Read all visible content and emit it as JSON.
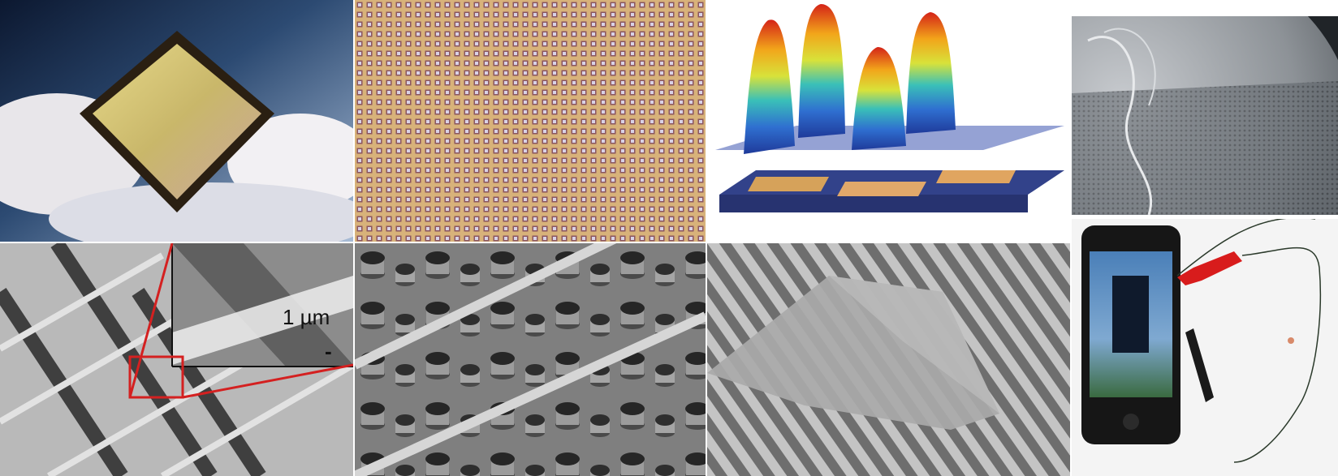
{
  "figure": {
    "panels": [
      {
        "id": "chip",
        "depicts": "fingers-holding-square-chip"
      },
      {
        "id": "grid",
        "depicts": "microscope-pixel-array"
      },
      {
        "id": "peaks",
        "depicts": "3d-surface-peaks-over-device"
      },
      {
        "id": "coin",
        "depicts": "mesh-on-coin"
      },
      {
        "id": "sem1",
        "depicts": "sem-crossbar-with-inset"
      },
      {
        "id": "sem2",
        "depicts": "sem-pillars-and-bridges"
      },
      {
        "id": "sem3",
        "depicts": "sem-membrane-on-grooves"
      },
      {
        "id": "phone",
        "depicts": "phone-with-alligator-clips"
      }
    ],
    "scale_bar_label": "1 µm",
    "inset_marker": "-"
  },
  "colors": {
    "highlight_box": "#d42020",
    "sem_gray": "#9a9a9a",
    "chip_gold": "#c9b76a",
    "clip_red": "#d81c1c",
    "clip_black": "#1a1a1a"
  }
}
